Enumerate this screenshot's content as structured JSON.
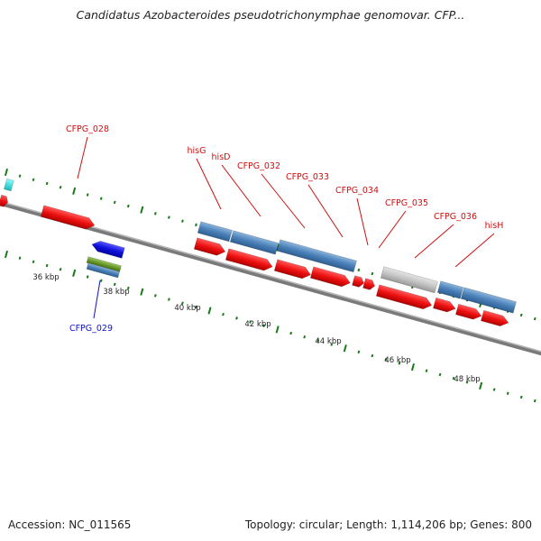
{
  "title": "Candidatus Azobacteroides pseudotrichonymphae genomovar. CFP...",
  "footer": {
    "accession": "Accession: NC_011565",
    "summary": "Topology: circular; Length: 1,114,206 bp; Genes: 800"
  },
  "colors": {
    "backbone": "#7a7a7a",
    "forward_gene": "#ee1111",
    "reverse_gene": "#1111dd",
    "feature_blue": "#4a80b8",
    "feature_green": "#6a9a2a",
    "feature_gray": "#c0c0c0",
    "feature_cyan": "#22dddd",
    "tick": "#1a7a1a",
    "label_red": "#cc1111",
    "label_blue": "#1111cc"
  },
  "scale_labels": [
    "36 kbp",
    "38 kbp",
    "40 kbp",
    "42 kbp",
    "44 kbp",
    "46 kbp",
    "48 kbp"
  ],
  "gene_labels": [
    {
      "text": "CFPG_028",
      "strand": "forward"
    },
    {
      "text": "hisG",
      "strand": "forward"
    },
    {
      "text": "hisD",
      "strand": "forward"
    },
    {
      "text": "CFPG_032",
      "strand": "forward"
    },
    {
      "text": "CFPG_033",
      "strand": "forward"
    },
    {
      "text": "CFPG_034",
      "strand": "forward"
    },
    {
      "text": "CFPG_035",
      "strand": "forward"
    },
    {
      "text": "CFPG_036",
      "strand": "forward"
    },
    {
      "text": "hisH",
      "strand": "forward"
    },
    {
      "text": "CFPG_029",
      "strand": "reverse"
    }
  ]
}
